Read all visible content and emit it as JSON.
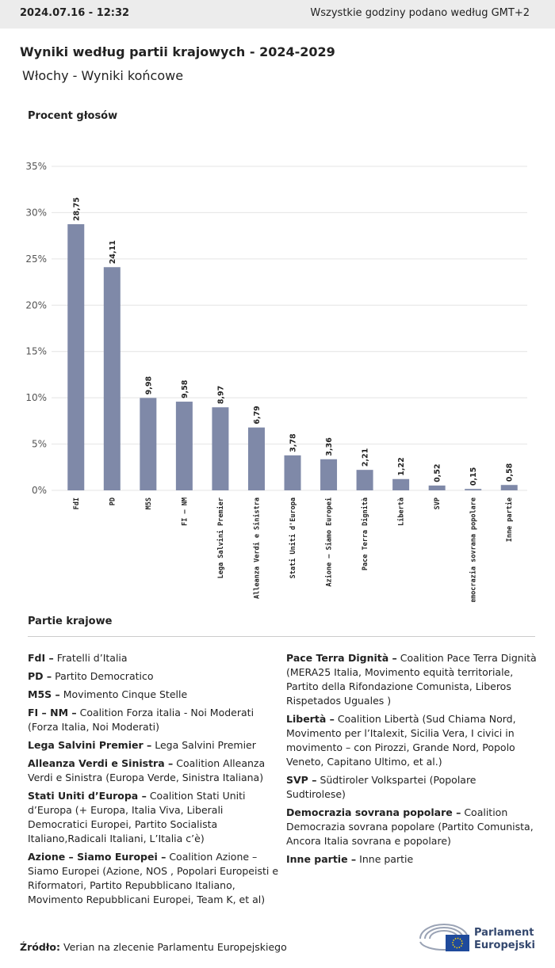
{
  "header": {
    "date": "2024.07.16 - 12:32",
    "timezone": "Wszystkie godziny podano według GMT+2"
  },
  "chart_data": {
    "type": "bar",
    "title": "Wyniki według partii krajowych - 2024-2029",
    "subtitle": "Włochy - Wyniki końcowe",
    "y_label": "Procent głosów",
    "categories": [
      "FdI",
      "PD",
      "M5S",
      "FI – NM",
      "Lega Salvini Premier",
      "Alleanza Verdi e Sinistra",
      "Stati Uniti d'Europa",
      "Azione – Siamo Europei",
      "Pace Terra Dignità",
      "Libertà",
      "SVP",
      "Democrazia sovrana popolare",
      "Inne partie"
    ],
    "values": [
      28.75,
      24.11,
      9.98,
      9.58,
      8.97,
      6.79,
      3.78,
      3.36,
      2.21,
      1.22,
      0.52,
      0.15,
      0.58
    ],
    "value_labels": [
      "28,75",
      "24,11",
      "9,98",
      "9,58",
      "8,97",
      "6,79",
      "3,78",
      "3,36",
      "2,21",
      "1,22",
      "0,52",
      "0,15",
      "0,58"
    ],
    "color": "#7f89a8",
    "ylim": [
      0,
      35
    ],
    "yticks": [
      {
        "value": 0,
        "label": "0%"
      },
      {
        "value": 5,
        "label": "5%"
      },
      {
        "value": 10,
        "label": "10%"
      },
      {
        "value": 15,
        "label": "15%"
      },
      {
        "value": 20,
        "label": "20%"
      },
      {
        "value": 25,
        "label": "25%"
      },
      {
        "value": 30,
        "label": "30%"
      },
      {
        "value": 35,
        "label": "35%"
      }
    ],
    "grid": true
  },
  "legend": {
    "title": "Partie krajowe",
    "items": [
      {
        "abbr": "FdI –",
        "desc": "Fratelli d’Italia"
      },
      {
        "abbr": "PD –",
        "desc": "Partito Democratico"
      },
      {
        "abbr": "M5S –",
        "desc": "Movimento Cinque Stelle"
      },
      {
        "abbr": "FI – NM –",
        "desc": "Coalition Forza italia - Noi Moderati (Forza Italia, Noi Moderati)"
      },
      {
        "abbr": "Lega Salvini Premier –",
        "desc": "Lega Salvini Premier"
      },
      {
        "abbr": "Alleanza Verdi e Sinistra –",
        "desc": "Coalition Alleanza Verdi e Sinistra (Europa Verde, Sinistra Italiana)"
      },
      {
        "abbr": "Stati Uniti d’Europa –",
        "desc": "Coalition Stati Uniti d’Europa (+ Europa, Italia Viva, Liberali Democratici Europei, Partito Socialista Italiano,Radicali Italiani, L’Italia c’è)"
      },
      {
        "abbr": "Azione – Siamo Europei –",
        "desc": "Coalition Azione – Siamo Europei (Azione, NOS , Popolari Europeisti e Riformatori, Partito Repubblicano Italiano, Movimento Repubblicani Europei, Team K, et al)"
      },
      {
        "abbr": "Pace Terra Dignità –",
        "desc": "Coalition Pace Terra Dignità (MERA25 Italia, Movimento equità territoriale, Partito della Rifondazione Comunista, Liberos Rispetados Uguales )"
      },
      {
        "abbr": "Libertà –",
        "desc": "Coalition Libertà (Sud Chiama Nord, Movimento per l’Italexit, Sicilia Vera, I civici in movimento – con Pirozzi, Grande Nord, Popolo Veneto, Capitano Ultimo, et al.)"
      },
      {
        "abbr": "SVP –",
        "desc": "Südtiroler Volkspartei (Popolare Sudtirolese)"
      },
      {
        "abbr": "Democrazia sovrana popolare –",
        "desc": "Coalition Democrazia sovrana popolare (Partito Comunista, Ancora Italia sovrana e popolare)"
      },
      {
        "abbr": "Inne partie –",
        "desc": "Inne partie"
      }
    ]
  },
  "footer": {
    "source_label": "Źródło:",
    "source": "Verian na zlecenie Parlamentu Europejskiego",
    "logo_line1": "Parlament",
    "logo_line2": "Europejski"
  }
}
